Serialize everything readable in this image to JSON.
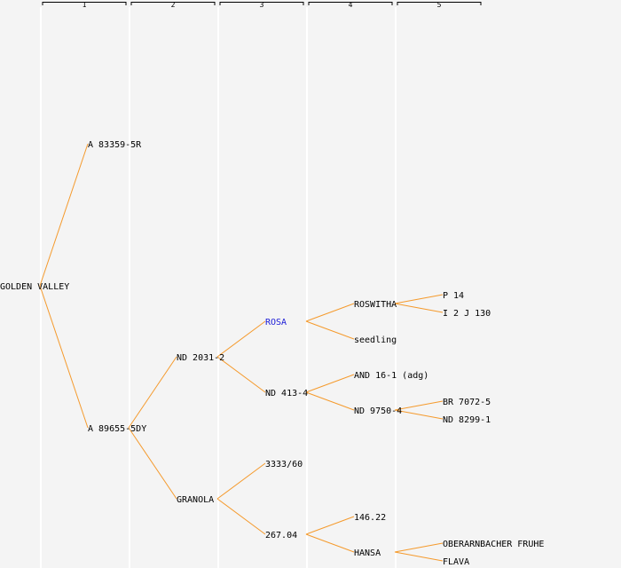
{
  "generations": [
    "1",
    "2",
    "3",
    "4",
    "5"
  ],
  "pedigree": {
    "root": {
      "id": "n0",
      "label": "GOLDEN VALLEY"
    },
    "nodes": [
      {
        "id": "n1",
        "label": "A 83359-5R",
        "parent": "n0",
        "generation": 1
      },
      {
        "id": "n2",
        "label": "A 89655-5DY",
        "parent": "n0",
        "generation": 1
      },
      {
        "id": "n3",
        "label": "ND 2031-2",
        "parent": "n2",
        "generation": 2
      },
      {
        "id": "n4",
        "label": "GRANOLA",
        "parent": "n2",
        "generation": 2
      },
      {
        "id": "n5",
        "label": "ROSA",
        "parent": "n3",
        "generation": 3,
        "highlight": true
      },
      {
        "id": "n6",
        "label": "ND 413-4",
        "parent": "n3",
        "generation": 3
      },
      {
        "id": "n7",
        "label": "3333/60",
        "parent": "n4",
        "generation": 3
      },
      {
        "id": "n8",
        "label": "267.04",
        "parent": "n4",
        "generation": 3
      },
      {
        "id": "n9",
        "label": "ROSWITHA",
        "parent": "n5",
        "generation": 4
      },
      {
        "id": "n10",
        "label": "seedling",
        "parent": "n5",
        "generation": 4
      },
      {
        "id": "n11",
        "label": "AND 16-1 (adg)",
        "parent": "n6",
        "generation": 4
      },
      {
        "id": "n12",
        "label": "ND 9750-4",
        "parent": "n6",
        "generation": 4
      },
      {
        "id": "n13",
        "label": "146.22",
        "parent": "n8",
        "generation": 4
      },
      {
        "id": "n14",
        "label": "HANSA",
        "parent": "n8",
        "generation": 4
      },
      {
        "id": "n15",
        "label": "P 14",
        "parent": "n9",
        "generation": 5
      },
      {
        "id": "n16",
        "label": "I 2 J 130",
        "parent": "n9",
        "generation": 5
      },
      {
        "id": "n17",
        "label": "BR 7072-5",
        "parent": "n12",
        "generation": 5
      },
      {
        "id": "n18",
        "label": "ND 8299-1",
        "parent": "n12",
        "generation": 5
      },
      {
        "id": "n19",
        "label": "OBERARNBACHER FRUHE",
        "parent": "n14",
        "generation": 5
      },
      {
        "id": "n20",
        "label": "FLAVA",
        "parent": "n14",
        "generation": 5
      }
    ]
  },
  "colors": {
    "edge": "#f59a2c",
    "highlight_text": "#1b1bd6",
    "background": "#f4f4f4"
  }
}
